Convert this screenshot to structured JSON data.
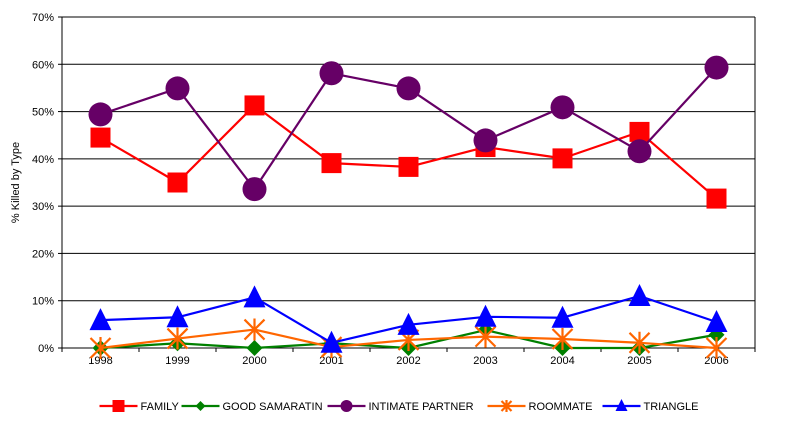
{
  "chart_data": {
    "type": "line",
    "title": "",
    "xlabel": "",
    "ylabel": "% Killed by Type",
    "categories": [
      "1998",
      "1999",
      "2000",
      "2001",
      "2002",
      "2003",
      "2004",
      "2005",
      "2006"
    ],
    "y_ticks": [
      "0%",
      "10%",
      "20%",
      "30%",
      "40%",
      "50%",
      "60%",
      "70%"
    ],
    "ylim": [
      0,
      70
    ],
    "grid": "horizontal",
    "legend_position": "bottom",
    "series": [
      {
        "name": "FAMILY",
        "color": "#ff0000",
        "marker": "square",
        "values": [
          44.5,
          35,
          51.3,
          39.1,
          38.3,
          42.5,
          40.1,
          45.7,
          31.6
        ]
      },
      {
        "name": "GOOD SAMARATIN",
        "color": "#008000",
        "marker": "diamond",
        "values": [
          0,
          1,
          0,
          1,
          0,
          3.8,
          0,
          0,
          2.8
        ]
      },
      {
        "name": "INTIMATE PARTNER",
        "color": "#660066",
        "marker": "circle",
        "values": [
          49.4,
          54.9,
          33.6,
          58.1,
          54.9,
          43.9,
          50.9,
          41.6,
          59.3
        ]
      },
      {
        "name": "ROOMMATE",
        "color": "#ff6600",
        "marker": "asterisk",
        "values": [
          0,
          2,
          3.9,
          0.2,
          1.7,
          2.4,
          1.9,
          1.1,
          0
        ]
      },
      {
        "name": "TRIANGLE",
        "color": "#0000ff",
        "marker": "triangle",
        "values": [
          5.9,
          6.5,
          10.7,
          1.1,
          4.9,
          6.6,
          6.4,
          11,
          5.5
        ]
      }
    ]
  }
}
